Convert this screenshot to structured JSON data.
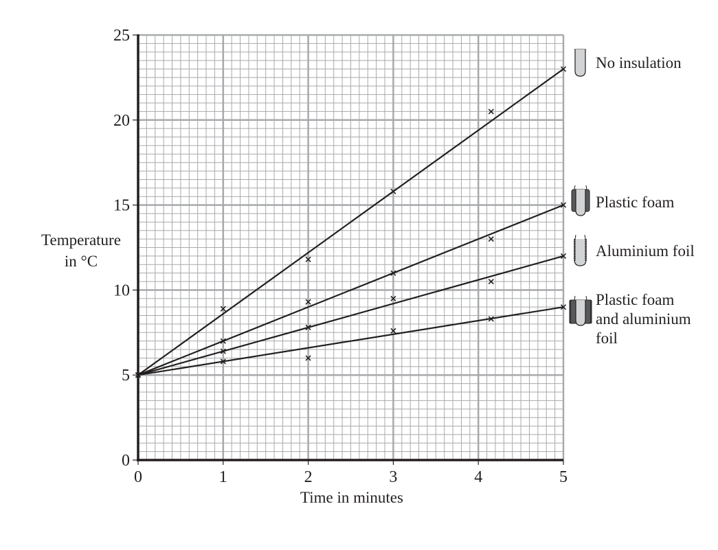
{
  "chart_data": {
    "type": "line",
    "title": "",
    "xlabel": "Time in minutes",
    "ylabel": "Temperature in °C",
    "ylabel_lines": [
      "Temperature",
      "in °C"
    ],
    "xlim": [
      0,
      5
    ],
    "ylim": [
      0,
      25
    ],
    "x_ticks": [
      0,
      1,
      2,
      3,
      4,
      5
    ],
    "y_ticks": [
      0,
      5,
      10,
      15,
      20,
      25
    ],
    "grid": true,
    "grid_minor_divisions_x": 10,
    "grid_minor_divisions_y": 10,
    "legend_position": "right",
    "series": [
      {
        "name": "No insulation",
        "icon": "test-tube-no-insulation-icon",
        "line_of_best_fit": [
          [
            0,
            5
          ],
          [
            5,
            23
          ]
        ],
        "points": [
          [
            0,
            5
          ],
          [
            1,
            8.9
          ],
          [
            2,
            11.8
          ],
          [
            3,
            15.8
          ],
          [
            4.15,
            20.5
          ],
          [
            5,
            23
          ]
        ]
      },
      {
        "name": "Plastic foam",
        "icon": "test-tube-plastic-foam-icon",
        "line_of_best_fit": [
          [
            0,
            5
          ],
          [
            5,
            15
          ]
        ],
        "points": [
          [
            0,
            5
          ],
          [
            1,
            7.0
          ],
          [
            2,
            9.3
          ],
          [
            3,
            11.0
          ],
          [
            4.15,
            13.0
          ],
          [
            5,
            15
          ]
        ]
      },
      {
        "name": "Aluminium foil",
        "icon": "test-tube-aluminium-foil-icon",
        "line_of_best_fit": [
          [
            0,
            5
          ],
          [
            5,
            12
          ]
        ],
        "points": [
          [
            0,
            5
          ],
          [
            1,
            6.4
          ],
          [
            2,
            7.8
          ],
          [
            3,
            9.5
          ],
          [
            4.15,
            10.5
          ],
          [
            5,
            12
          ]
        ]
      },
      {
        "name": "Plastic foam and aluminium foil",
        "name_lines": [
          "Plastic foam",
          "and aluminium",
          "foil"
        ],
        "icon": "test-tube-foam-and-foil-icon",
        "line_of_best_fit": [
          [
            0,
            5
          ],
          [
            5,
            9
          ]
        ],
        "points": [
          [
            0,
            5
          ],
          [
            1,
            5.8
          ],
          [
            2,
            6.0
          ],
          [
            3,
            7.6
          ],
          [
            4.15,
            8.3
          ],
          [
            5,
            9
          ]
        ]
      }
    ]
  },
  "colors": {
    "ink": "#231f20",
    "grid_minor": "#a7a9ac",
    "grid_major": "#a7a9ac",
    "tube_fill": "#d1d3d4",
    "foam_fill": "#58595b"
  }
}
